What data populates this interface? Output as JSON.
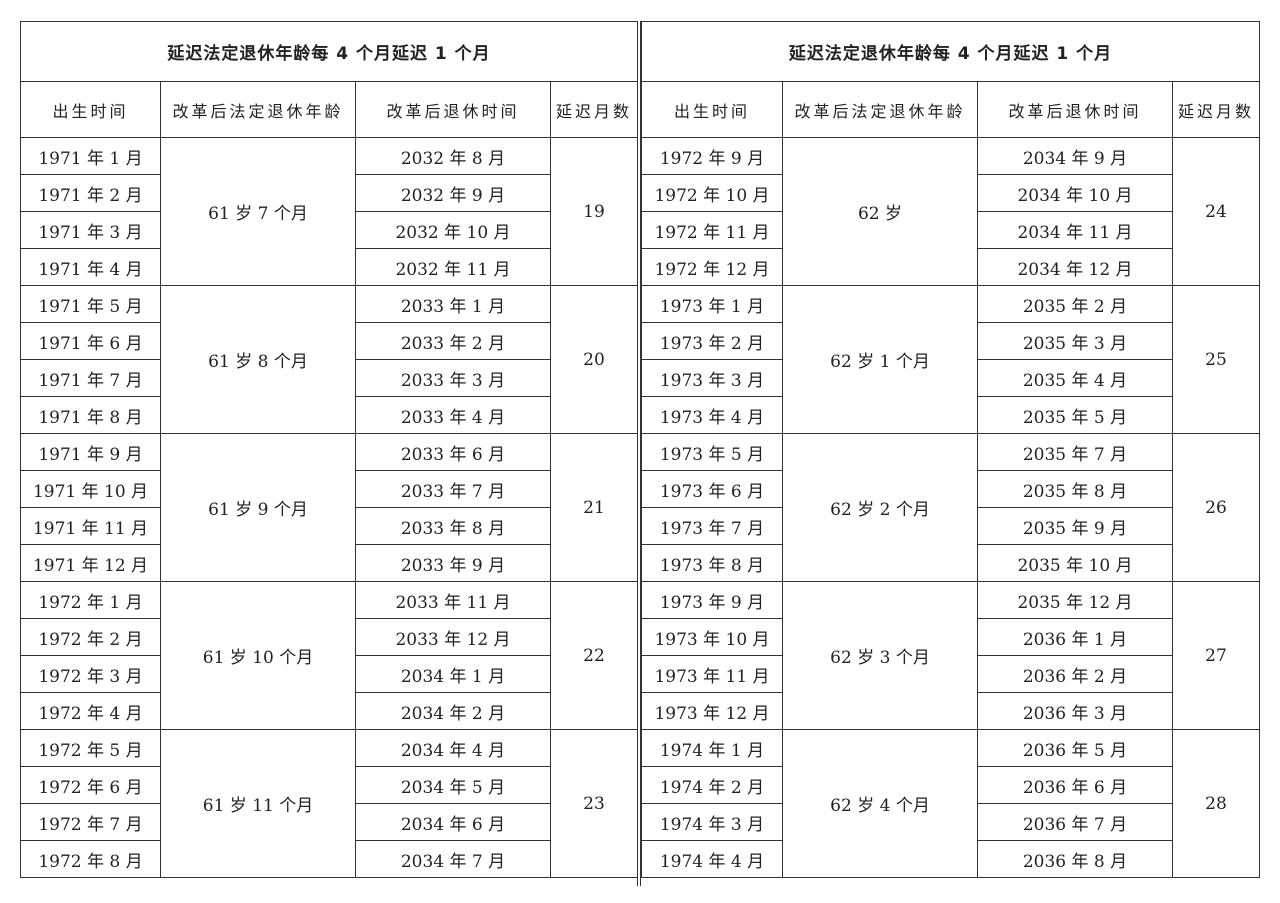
{
  "tables": [
    {
      "title": "延迟法定退休年龄每 4 个月延迟 1 个月",
      "headers": [
        "出生时间",
        "改革后法定退休年龄",
        "改革后退休时间",
        "延迟月数"
      ],
      "groups": [
        {
          "age": "61 岁 7 个月",
          "delay": "19",
          "rows": [
            {
              "birth": "1971 年 1 月",
              "retire": "2032 年 8 月"
            },
            {
              "birth": "1971 年 2 月",
              "retire": "2032 年 9 月"
            },
            {
              "birth": "1971 年 3 月",
              "retire": "2032 年 10 月"
            },
            {
              "birth": "1971 年 4 月",
              "retire": "2032 年 11 月"
            }
          ]
        },
        {
          "age": "61 岁 8 个月",
          "delay": "20",
          "rows": [
            {
              "birth": "1971 年 5 月",
              "retire": "2033 年 1 月"
            },
            {
              "birth": "1971 年 6 月",
              "retire": "2033 年 2 月"
            },
            {
              "birth": "1971 年 7 月",
              "retire": "2033 年 3 月"
            },
            {
              "birth": "1971 年 8 月",
              "retire": "2033 年 4 月"
            }
          ]
        },
        {
          "age": "61 岁 9 个月",
          "delay": "21",
          "rows": [
            {
              "birth": "1971 年 9 月",
              "retire": "2033 年 6 月"
            },
            {
              "birth": "1971 年 10 月",
              "retire": "2033 年 7 月"
            },
            {
              "birth": "1971 年 11 月",
              "retire": "2033 年 8 月"
            },
            {
              "birth": "1971 年 12 月",
              "retire": "2033 年 9 月"
            }
          ]
        },
        {
          "age": "61 岁 10 个月",
          "delay": "22",
          "rows": [
            {
              "birth": "1972 年 1 月",
              "retire": "2033 年 11 月"
            },
            {
              "birth": "1972 年 2 月",
              "retire": "2033 年 12 月"
            },
            {
              "birth": "1972 年 3 月",
              "retire": "2034 年 1 月"
            },
            {
              "birth": "1972 年 4 月",
              "retire": "2034 年 2 月"
            }
          ]
        },
        {
          "age": "61 岁 11 个月",
          "delay": "23",
          "rows": [
            {
              "birth": "1972 年 5 月",
              "retire": "2034 年 4 月"
            },
            {
              "birth": "1972 年 6 月",
              "retire": "2034 年 5 月"
            },
            {
              "birth": "1972 年 7 月",
              "retire": "2034 年 6 月"
            },
            {
              "birth": "1972 年 8 月",
              "retire": "2034 年 7 月"
            }
          ]
        }
      ]
    },
    {
      "title": "延迟法定退休年龄每 4 个月延迟 1 个月",
      "headers": [
        "出生时间",
        "改革后法定退休年龄",
        "改革后退休时间",
        "延迟月数"
      ],
      "groups": [
        {
          "age": "62 岁",
          "delay": "24",
          "rows": [
            {
              "birth": "1972 年 9 月",
              "retire": "2034 年 9 月"
            },
            {
              "birth": "1972 年 10 月",
              "retire": "2034 年 10 月"
            },
            {
              "birth": "1972 年 11 月",
              "retire": "2034 年 11 月"
            },
            {
              "birth": "1972 年 12 月",
              "retire": "2034 年 12 月"
            }
          ]
        },
        {
          "age": "62 岁 1 个月",
          "delay": "25",
          "rows": [
            {
              "birth": "1973 年 1 月",
              "retire": "2035 年 2 月"
            },
            {
              "birth": "1973 年 2 月",
              "retire": "2035 年 3 月"
            },
            {
              "birth": "1973 年 3 月",
              "retire": "2035 年 4 月"
            },
            {
              "birth": "1973 年 4 月",
              "retire": "2035 年 5 月"
            }
          ]
        },
        {
          "age": "62 岁 2 个月",
          "delay": "26",
          "rows": [
            {
              "birth": "1973 年 5 月",
              "retire": "2035 年 7 月"
            },
            {
              "birth": "1973 年 6 月",
              "retire": "2035 年 8 月"
            },
            {
              "birth": "1973 年 7 月",
              "retire": "2035 年 9 月"
            },
            {
              "birth": "1973 年 8 月",
              "retire": "2035 年 10 月"
            }
          ]
        },
        {
          "age": "62 岁 3 个月",
          "delay": "27",
          "rows": [
            {
              "birth": "1973 年 9 月",
              "retire": "2035 年 12 月"
            },
            {
              "birth": "1973 年 10 月",
              "retire": "2036 年 1 月"
            },
            {
              "birth": "1973 年 11 月",
              "retire": "2036 年 2 月"
            },
            {
              "birth": "1973 年 12 月",
              "retire": "2036 年 3 月"
            }
          ]
        },
        {
          "age": "62 岁 4 个月",
          "delay": "28",
          "rows": [
            {
              "birth": "1974 年 1 月",
              "retire": "2036 年 5 月"
            },
            {
              "birth": "1974 年 2 月",
              "retire": "2036 年 6 月"
            },
            {
              "birth": "1974 年 3 月",
              "retire": "2036 年 7 月"
            },
            {
              "birth": "1974 年 4 月",
              "retire": "2036 年 8 月"
            }
          ]
        }
      ]
    }
  ]
}
